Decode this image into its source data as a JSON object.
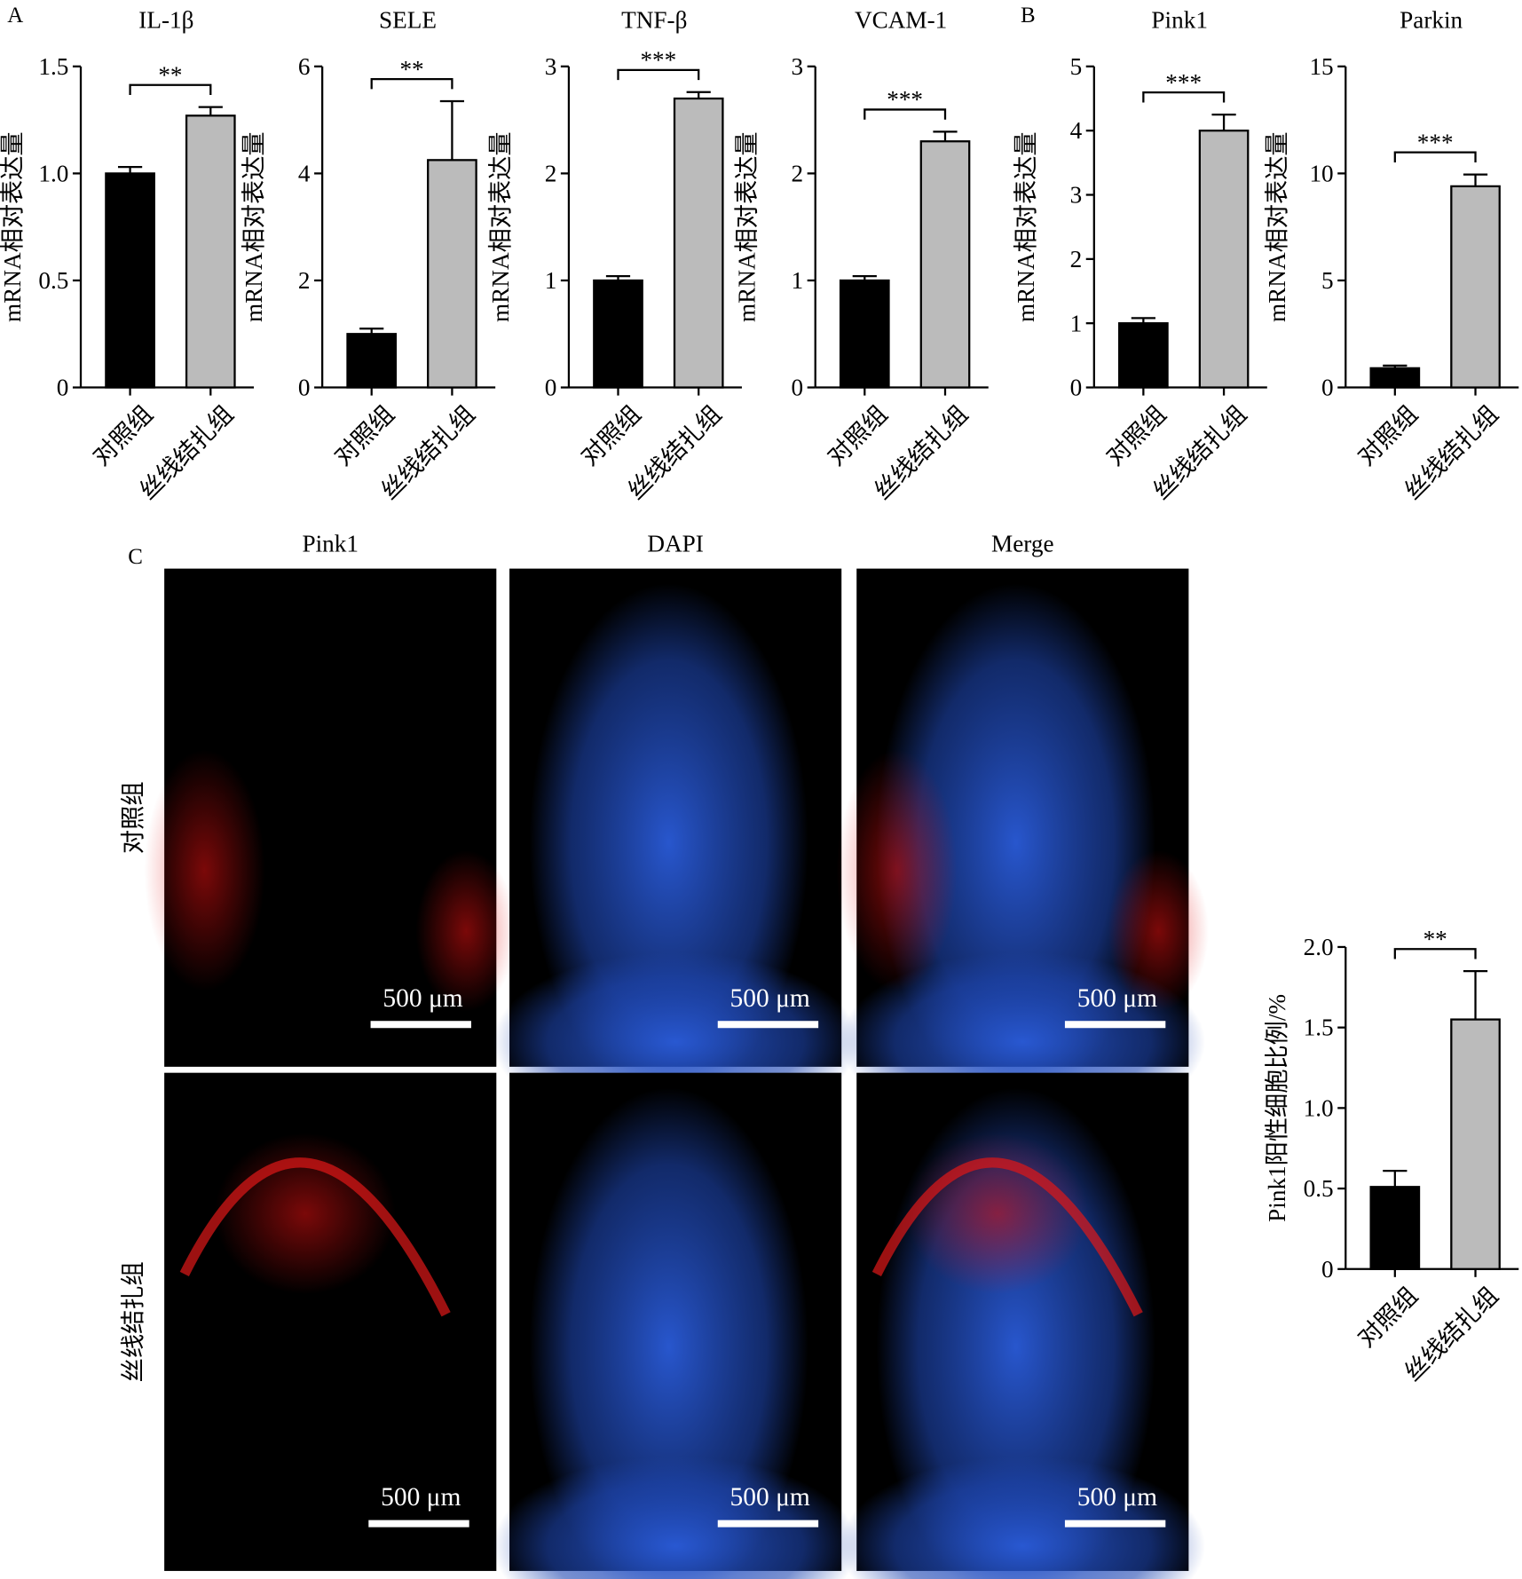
{
  "chart_data": [
    {
      "type": "bar",
      "panel": "A",
      "title": "IL-1β",
      "ylabel": "mRNA相对表达量",
      "categories": [
        "对照组",
        "丝线结扎组"
      ],
      "values": [
        1.0,
        1.27
      ],
      "errors": [
        0.03,
        0.04
      ],
      "colors": [
        "#000000",
        "#bbbbbb"
      ],
      "ylim": [
        0,
        1.5
      ],
      "yticks": [
        0,
        0.5,
        {
          "value": 1,
          "label": "1.0"
        },
        1.5
      ],
      "annotation": "**"
    },
    {
      "type": "bar",
      "title": "SELE",
      "ylabel": "mRNA相对表达量",
      "categories": [
        "对照组",
        "丝线结扎组"
      ],
      "values": [
        1.0,
        4.25
      ],
      "errors": [
        0.1,
        1.1
      ],
      "colors": [
        "#000000",
        "#bbbbbb"
      ],
      "ylim": [
        0,
        6
      ],
      "yticks": [
        0,
        2,
        4,
        6
      ],
      "annotation": "**"
    },
    {
      "type": "bar",
      "title": "TNF-β",
      "ylabel": "mRNA相对表达量",
      "categories": [
        "对照组",
        "丝线结扎组"
      ],
      "values": [
        1.0,
        2.7
      ],
      "errors": [
        0.04,
        0.06
      ],
      "colors": [
        "#000000",
        "#bbbbbb"
      ],
      "ylim": [
        0,
        3
      ],
      "yticks": [
        0,
        1,
        2,
        3
      ],
      "annotation": "***"
    },
    {
      "type": "bar",
      "title": "VCAM-1",
      "ylabel": "mRNA相对表达量",
      "categories": [
        "对照组",
        "丝线结扎组"
      ],
      "values": [
        1.0,
        2.3
      ],
      "errors": [
        0.04,
        0.09
      ],
      "colors": [
        "#000000",
        "#bbbbbb"
      ],
      "ylim": [
        0,
        3
      ],
      "yticks": [
        0,
        1,
        2,
        3
      ],
      "annotation": "***"
    },
    {
      "type": "bar",
      "panel": "B",
      "title": "Pink1",
      "ylabel": "mRNA相对表达量",
      "categories": [
        "对照组",
        "丝线结扎组"
      ],
      "values": [
        1.0,
        4.0
      ],
      "errors": [
        0.08,
        0.25
      ],
      "colors": [
        "#000000",
        "#bbbbbb"
      ],
      "ylim": [
        0,
        5
      ],
      "yticks": [
        0,
        1,
        2,
        3,
        4,
        5
      ],
      "annotation": "***"
    },
    {
      "type": "bar",
      "title": "Parkin",
      "ylabel": "mRNA相对表达量",
      "categories": [
        "对照组",
        "丝线结扎组"
      ],
      "values": [
        0.9,
        9.4
      ],
      "errors": [
        0.12,
        0.55
      ],
      "colors": [
        "#000000",
        "#bbbbbb"
      ],
      "ylim": [
        0,
        15
      ],
      "yticks": [
        0,
        5,
        10,
        15
      ],
      "annotation": "***"
    },
    {
      "type": "bar",
      "ylabel": "Pink1阳性细胞比例/%",
      "categories": [
        "对照组",
        "丝线结扎组"
      ],
      "values": [
        0.51,
        1.55
      ],
      "errors": [
        0.1,
        0.3
      ],
      "colors": [
        "#000000",
        "#bbbbbb"
      ],
      "ylim": [
        0,
        2
      ],
      "yticks": [
        0,
        0.5,
        {
          "value": 1,
          "label": "1.0"
        },
        1.5,
        {
          "value": 2,
          "label": "2.0"
        }
      ],
      "annotation": "**"
    }
  ],
  "micrographs": {
    "panel": "C",
    "columns": [
      "Pink1",
      "DAPI",
      "Merge"
    ],
    "rows": [
      "对照组",
      "丝线结扎组"
    ],
    "scale_bar": "500 μm"
  }
}
